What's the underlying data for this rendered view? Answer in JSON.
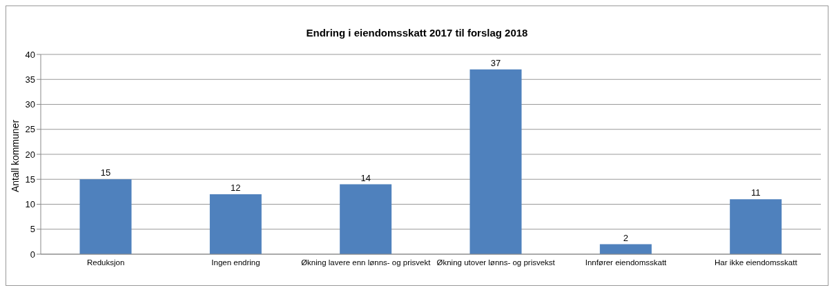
{
  "chart_data": {
    "type": "bar",
    "title": "Endring i eiendomsskatt 2017 til forslag 2018",
    "ylabel": "Antall kommuner",
    "categories": [
      "Reduksjon",
      "Ingen endring",
      "Økning lavere enn lønns- og prisvekt",
      "Økning utover lønns- og prisvekst",
      "Innfører eiendomsskatt",
      "Har ikke eiendomsskatt"
    ],
    "values": [
      15,
      12,
      14,
      37,
      2,
      11
    ],
    "color": "#4f81bd",
    "ylim": [
      0,
      40
    ],
    "yticks": [
      0,
      5,
      10,
      15,
      20,
      25,
      30,
      35,
      40
    ],
    "grid": "y",
    "data_labels": true
  }
}
